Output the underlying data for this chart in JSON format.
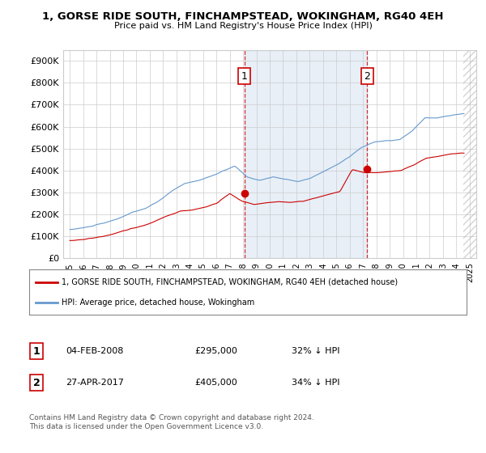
{
  "title": "1, GORSE RIDE SOUTH, FINCHAMPSTEAD, WOKINGHAM, RG40 4EH",
  "subtitle": "Price paid vs. HM Land Registry's House Price Index (HPI)",
  "legend_line1": "1, GORSE RIDE SOUTH, FINCHAMPSTEAD, WOKINGHAM, RG40 4EH (detached house)",
  "legend_line2": "HPI: Average price, detached house, Wokingham",
  "footnote": "Contains HM Land Registry data © Crown copyright and database right 2024.\nThis data is licensed under the Open Government Licence v3.0.",
  "transaction1": {
    "label": "1",
    "date": "04-FEB-2008",
    "price": "£295,000",
    "hpi": "32% ↓ HPI"
  },
  "transaction2": {
    "label": "2",
    "date": "27-APR-2017",
    "price": "£405,000",
    "hpi": "34% ↓ HPI"
  },
  "vline1_x": 2008.09,
  "vline2_x": 2017.32,
  "hatch_start_x": 2024.5,
  "price_color": "#cc0000",
  "hpi_color": "#6699cc",
  "fill_color": "#ddeeff",
  "background_color": "#ffffff",
  "plot_bg_color": "#ffffff",
  "ylim": [
    0,
    950000
  ],
  "xlim": [
    1994.5,
    2025.5
  ],
  "yticks": [
    0,
    100000,
    200000,
    300000,
    400000,
    500000,
    600000,
    700000,
    800000,
    900000
  ],
  "ytick_labels": [
    "£0",
    "£100K",
    "£200K",
    "£300K",
    "£400K",
    "£500K",
    "£600K",
    "£700K",
    "£800K",
    "£900K"
  ],
  "xtick_years": [
    1995,
    1996,
    1997,
    1998,
    1999,
    2000,
    2001,
    2002,
    2003,
    2004,
    2005,
    2006,
    2007,
    2008,
    2009,
    2010,
    2011,
    2012,
    2013,
    2014,
    2015,
    2016,
    2017,
    2018,
    2019,
    2020,
    2021,
    2022,
    2023,
    2024,
    2025
  ]
}
